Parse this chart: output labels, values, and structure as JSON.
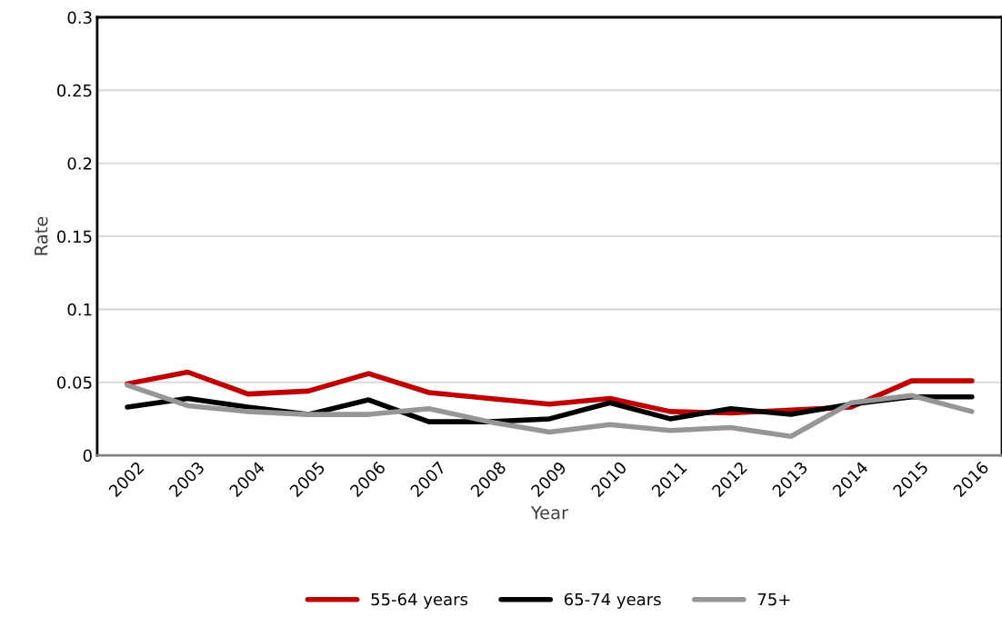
{
  "chart_data": {
    "type": "line",
    "xlabel": "Year",
    "ylabel": "Rate",
    "categories": [
      "2002",
      "2003",
      "2004",
      "2005",
      "2006",
      "2007",
      "2008",
      "2009",
      "2010",
      "2011",
      "2012",
      "2013",
      "2014",
      "2015",
      "2016"
    ],
    "series": [
      {
        "name": "55-64 years",
        "color": "#c00000",
        "values": [
          0.049,
          0.057,
          0.042,
          0.044,
          0.056,
          0.043,
          0.039,
          0.035,
          0.039,
          0.03,
          0.029,
          0.031,
          0.033,
          0.051,
          0.051
        ]
      },
      {
        "name": "65-74 years",
        "color": "#000000",
        "values": [
          0.033,
          0.039,
          0.033,
          0.028,
          0.038,
          0.023,
          0.023,
          0.025,
          0.036,
          0.025,
          0.032,
          0.028,
          0.035,
          0.04,
          0.04
        ]
      },
      {
        "name": "75+",
        "color": "#969696",
        "values": [
          0.048,
          0.034,
          0.03,
          0.028,
          0.028,
          0.032,
          0.023,
          0.016,
          0.021,
          0.017,
          0.019,
          0.013,
          0.036,
          0.041,
          0.03
        ]
      }
    ],
    "ylim": [
      0,
      0.3
    ],
    "yticks": [
      0,
      0.05,
      0.1,
      0.15,
      0.2,
      0.25,
      0.3
    ],
    "grid": "y",
    "legend": "bottom",
    "marker": "none",
    "line_style": "solid"
  }
}
